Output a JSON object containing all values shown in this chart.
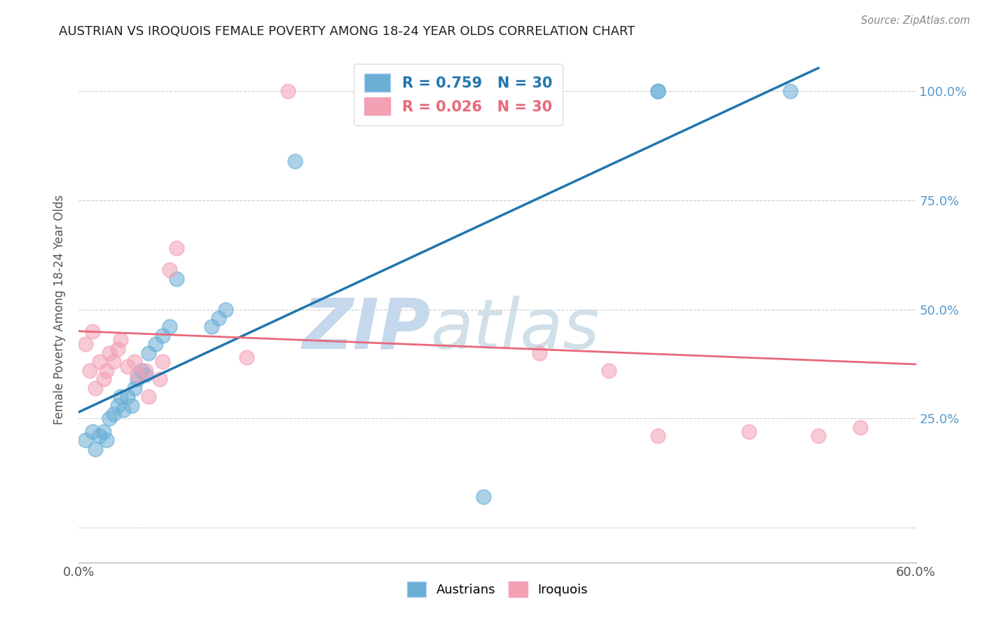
{
  "title": "AUSTRIAN VS IROQUOIS FEMALE POVERTY AMONG 18-24 YEAR OLDS CORRELATION CHART",
  "source": "Source: ZipAtlas.com",
  "ylabel": "Female Poverty Among 18-24 Year Olds",
  "xlim": [
    0.0,
    0.6
  ],
  "ylim": [
    -0.08,
    1.08
  ],
  "ytick_positions": [
    0.0,
    0.25,
    0.5,
    0.75,
    1.0
  ],
  "ytick_labels": [
    "",
    "25.0%",
    "50.0%",
    "75.0%",
    "100.0%"
  ],
  "austrians_x": [
    0.005,
    0.01,
    0.012,
    0.015,
    0.018,
    0.02,
    0.022,
    0.025,
    0.028,
    0.03,
    0.032,
    0.035,
    0.038,
    0.04,
    0.042,
    0.045,
    0.048,
    0.05,
    0.055,
    0.06,
    0.065,
    0.07,
    0.095,
    0.1,
    0.105,
    0.155,
    0.29,
    0.415,
    0.415,
    0.51
  ],
  "austrians_y": [
    0.2,
    0.22,
    0.18,
    0.21,
    0.22,
    0.2,
    0.25,
    0.26,
    0.28,
    0.3,
    0.27,
    0.3,
    0.28,
    0.32,
    0.34,
    0.36,
    0.35,
    0.4,
    0.42,
    0.44,
    0.46,
    0.57,
    0.46,
    0.48,
    0.5,
    0.84,
    0.07,
    1.0,
    1.0,
    1.0
  ],
  "iroquois_x": [
    0.005,
    0.008,
    0.01,
    0.012,
    0.015,
    0.018,
    0.02,
    0.022,
    0.025,
    0.028,
    0.03,
    0.035,
    0.04,
    0.042,
    0.048,
    0.05,
    0.058,
    0.06,
    0.065,
    0.07,
    0.12,
    0.15,
    0.21,
    0.29,
    0.33,
    0.38,
    0.415,
    0.48,
    0.53,
    0.56
  ],
  "iroquois_y": [
    0.42,
    0.36,
    0.45,
    0.32,
    0.38,
    0.34,
    0.36,
    0.4,
    0.38,
    0.41,
    0.43,
    0.37,
    0.38,
    0.35,
    0.36,
    0.3,
    0.34,
    0.38,
    0.59,
    0.64,
    0.39,
    1.0,
    1.0,
    1.0,
    0.4,
    0.36,
    0.21,
    0.22,
    0.21,
    0.23
  ],
  "austrians_R": 0.759,
  "iroquois_R": 0.026,
  "N": 30,
  "austrians_color": "#6aaed6",
  "iroquois_color": "#f4a0b5",
  "austrians_line_color": "#2176ae",
  "iroquois_line_color": "#e8687a",
  "background_color": "#ffffff",
  "grid_color": "#cccccc",
  "watermark_zip_color": "#b8cfe8",
  "watermark_atlas_color": "#c8d8e8"
}
